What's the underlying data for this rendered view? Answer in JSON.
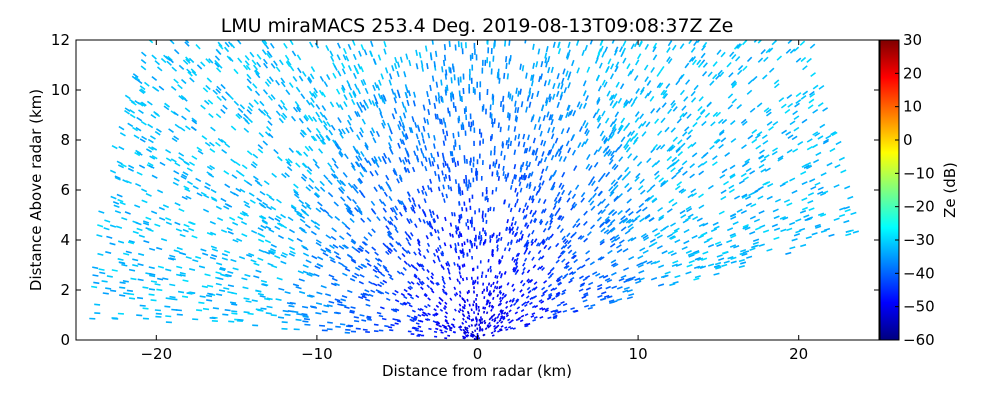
{
  "chart_data": {
    "type": "scatter",
    "subtype": "radar-rhi-scan",
    "title": "LMU miraMACS 253.4 Deg. 2019-08-13T09:08:37Z  Ze",
    "xlabel": "Distance from radar (km)",
    "ylabel": "Distance Above radar  (km)",
    "xlim": [
      -25,
      25
    ],
    "ylim": [
      0,
      12
    ],
    "xticks": [
      -20,
      -10,
      0,
      10,
      20
    ],
    "xtick_labels": [
      "−20",
      "−10",
      "0",
      "10",
      "20"
    ],
    "yticks": [
      0,
      2,
      4,
      6,
      8,
      10,
      12
    ],
    "ytick_labels": [
      "0",
      "2",
      "4",
      "6",
      "8",
      "10",
      "12"
    ],
    "colorbar": {
      "label": "Ze (dB)",
      "range": [
        -60,
        30
      ],
      "ticks": [
        -60,
        -50,
        -40,
        -30,
        -20,
        -10,
        0,
        10,
        20,
        30
      ],
      "tick_labels": [
        "−60",
        "−50",
        "−40",
        "−30",
        "−20",
        "−10",
        "0",
        "10",
        "20",
        "30"
      ],
      "colormap": "jet",
      "colormap_stops": [
        "#00007f",
        "#0000ff",
        "#007fff",
        "#00ffff",
        "#7fff7f",
        "#ffff00",
        "#ff7f00",
        "#ff0000",
        "#7f0000"
      ]
    },
    "scan": {
      "max_range_km": 24,
      "min_elevation_deg": 10,
      "max_elevation_deg": 178,
      "ze_near_radar_dB": -52,
      "ze_far_dB": -32
    }
  }
}
